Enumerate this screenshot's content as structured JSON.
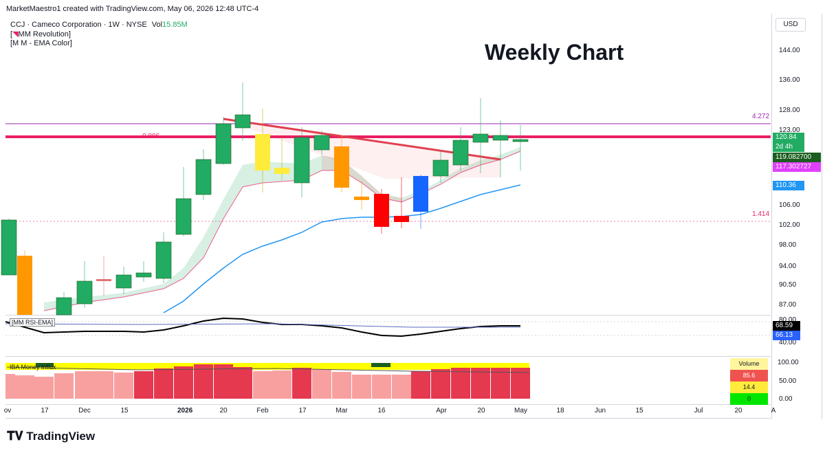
{
  "header": {
    "author_line": "MarketMaestro1 created with TradingView.com, May 06, 2026 12:48 UTC-4",
    "symbol_line": "CCJ · Cameco Corporation · 1W · NYSE",
    "vol_label": "Vol",
    "vol_value": "15.85M",
    "indicator1_prefix": "[",
    "indicator1_name": "MM Revolution]",
    "indicator2": "[M M - EMA Color]"
  },
  "overlay_title": "Weekly Chart",
  "currency": "USD",
  "fib_labels": {
    "left_0886": "0.886",
    "right_4272": "4.272",
    "right_1414": "1.414"
  },
  "price_scale": [
    "144.00",
    "136.00",
    "128.00",
    "123.00",
    "106.00",
    "102.00",
    "98.00",
    "94.00",
    "90.50",
    "87.00"
  ],
  "price_tags": {
    "last": "120.84",
    "countdown": "2d 4h",
    "ema_fast": "119.082700",
    "ema_pink": "117.302727",
    "ema_blue": "110.36"
  },
  "rsi_panel": {
    "label": "[MM RSI-EMA]",
    "scale": [
      "80.00",
      "40.00"
    ],
    "tag_black": "68.59",
    "tag_blue": "66.13"
  },
  "mfi_panel": {
    "label": "IBA Money Influx",
    "scale": [
      "100.00",
      "50.00",
      "0.00"
    ],
    "volume_header": "Volume",
    "vol_red": "85.6",
    "vol_yellow": "14.4",
    "vol_green": "0"
  },
  "time_axis": [
    "ov",
    "17",
    "Dec",
    "15",
    "2026",
    "20",
    "Feb",
    "17",
    "Mar",
    "16",
    "Apr",
    "20",
    "May",
    "18",
    "Jun",
    "15",
    "Jul",
    "20",
    "A"
  ],
  "branding": "TradingView",
  "colors": {
    "up": "#22ab62",
    "down": "#f23645",
    "fib_pink": "#e91e63",
    "ema_blue": "#2196f3"
  }
}
